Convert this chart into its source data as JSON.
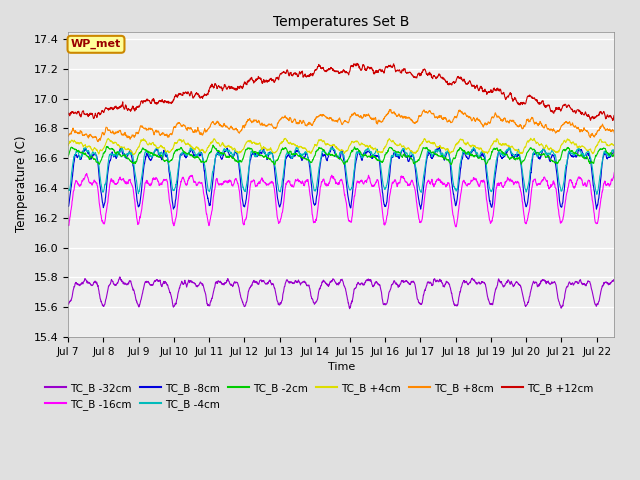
{
  "title": "Temperatures Set B",
  "xlabel": "Time",
  "ylabel": "Temperature (C)",
  "ylim": [
    15.4,
    17.45
  ],
  "annotation": "WP_met",
  "series": [
    {
      "label": "TC_B -32cm",
      "color": "#9900cc",
      "base": 15.73,
      "amp_day": 0.12,
      "noise": 0.025,
      "trend": 0.0,
      "big_dips": true
    },
    {
      "label": "TC_B -16cm",
      "color": "#ff00ff",
      "base": 16.38,
      "amp_day": 0.22,
      "noise": 0.03,
      "trend": 0.0,
      "big_dips": true
    },
    {
      "label": "TC_B -8cm",
      "color": "#0000dd",
      "base": 16.55,
      "amp_day": 0.27,
      "noise": 0.03,
      "trend": 0.0,
      "big_dips": true
    },
    {
      "label": "TC_B -4cm",
      "color": "#00bbbb",
      "base": 16.58,
      "amp_day": 0.2,
      "noise": 0.025,
      "trend": 0.0,
      "big_dips": true
    },
    {
      "label": "TC_B -2cm",
      "color": "#00cc00",
      "base": 16.62,
      "amp_day": 0.12,
      "noise": 0.02,
      "trend": 0.0,
      "big_dips": false
    },
    {
      "label": "TC_B +4cm",
      "color": "#dddd00",
      "base": 16.68,
      "amp_day": 0.1,
      "noise": 0.02,
      "trend": 0.0,
      "big_dips": false
    },
    {
      "label": "TC_B +8cm",
      "color": "#ff8800",
      "base": 16.73,
      "amp_day": 0.09,
      "noise": 0.025,
      "trend": 0.15,
      "big_dips": false
    },
    {
      "label": "TC_B +12cm",
      "color": "#cc0000",
      "base": 16.82,
      "amp_day": 0.06,
      "noise": 0.03,
      "trend": 0.38,
      "big_dips": false
    }
  ],
  "xtick_labels": [
    "Jul 7",
    "Jul 8",
    "Jul 9",
    "Jul 10",
    "Jul 11",
    "Jul 12",
    "Jul 13",
    "Jul 14",
    "Jul 15",
    "Jul 16",
    "Jul 17",
    "Jul 18",
    "Jul 19",
    "Jul 20",
    "Jul 21",
    "Jul 22"
  ],
  "ytick_vals": [
    15.4,
    15.6,
    15.8,
    16.0,
    16.2,
    16.4,
    16.6,
    16.8,
    17.0,
    17.2,
    17.4
  ],
  "bg_color": "#e0e0e0",
  "plot_bg": "#eeeeee",
  "linewidth": 0.8,
  "n_points": 2232
}
